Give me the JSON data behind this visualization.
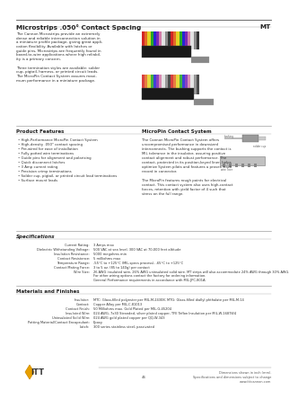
{
  "title_left": "Microstrips .050° Contact Spacing",
  "title_right": "MT",
  "bg_color": "#ffffff",
  "intro_lines": [
    "The Cannon Microstrips provide an extremely",
    "dense and reliable interconnection solution in",
    "a miniature profile package, giving great appli-",
    "cation flexibility. Available with latches or",
    "guide pins, Microstrips are frequently found in",
    "board-to-wire applications where high reliabil-",
    "ity is a primary concern.",
    "",
    "Three termination styles are available: solder",
    "cup, pigtail, harness, or printed circuit leads.",
    "The MicroPin Contact System assures maxi-",
    "mum performance in a miniature package."
  ],
  "product_features_title": "Product Features",
  "product_features": [
    "High-Performance MicroPin Contact System",
    "High-density .050\" contact spacing",
    "Pre-wired for ease of installation",
    "Fully potted wire terminations",
    "Guide pins for alignment and polarizing",
    "Quick disconnect latches",
    "3 Amp current rating",
    "Precision crimp terminations",
    "Solder cup, pigtail, or printed circuit lead terminations",
    "Surface mount leads"
  ],
  "micropin_title": "MicroPin Contact System",
  "micropin_lines": [
    "The Cannon MicroPin Contact System offers",
    "uncompromised performance in downsized",
    "interconnects. The bushing supports the contact is",
    "MIL tolerance in the insulator, assuring positive",
    "contact alignment and robust performance. The",
    "contact, protected in its position-keyed liner, helps",
    "optimize System pilots and features a proven track",
    "record in connector.",
    "",
    "The MicroPin features rough points for electrical",
    "contact. This contact system also uses high-contact",
    "forces, retention with yield factor of 4 such that",
    "stress on the full range."
  ],
  "specs_title": "Specifications",
  "specs": [
    [
      "Current Rating:",
      "3 Amps max"
    ],
    [
      "Dielectric Withstanding Voltage:",
      "500 VAC at sea level, 300 VAC at 70,000 feet altitude"
    ],
    [
      "Insulation Resistance:",
      "5000 megohms min"
    ],
    [
      "Contact Resistance:",
      "5 milliohms max"
    ],
    [
      "Temperature Range:",
      "-55°C to +125°C (MIL-specs process), -65°C to +125°C"
    ],
    [
      "Contact Mating Force:",
      "3 to 5 oz. (85 to 140g) per contact"
    ],
    [
      "Wire Size:",
      "26 AWG insulated wire, 26% AWG uninsulated solid wire. MT strips will also accommodate 24% AWG through 30% AWG.\nFor other wiring options contact the factory for ordering information.\nGeneral Performance requirements in accordance with MIL-JPC-801A."
    ]
  ],
  "materials_title": "Materials and Finishes",
  "materials": [
    [
      "Insulator:",
      "MTC: Glass-filled polyester per MIL-M-24308; MTG: Glass-filled diallyl phthalate per MIL-M-14"
    ],
    [
      "Contact:",
      "Copper Alloy per MIL-C-81013"
    ],
    [
      "Contact Finish:",
      "50 Milliohms max. Gold Plated per MIL-G-45204"
    ],
    [
      "Insulated Wire:",
      "024 AWG, 7x30 Stranded, silver plated copper, TFE Teflon Insulation per MIL-W-16878/4"
    ],
    [
      "Uninsulated Solid Wire:",
      "024 AWG gold plated copper per QQ-W-343"
    ],
    [
      "Potting Material/Contact Encapsulant:",
      "Epoxy"
    ],
    [
      "Latch:",
      "300 series stainless steel, passivated"
    ]
  ],
  "footer_left": "Dimensions shown in inch (mm).",
  "footer_right": "www.ittcannon.com",
  "footer_note": "Specifications and dimensions subject to change",
  "page_num": "46"
}
